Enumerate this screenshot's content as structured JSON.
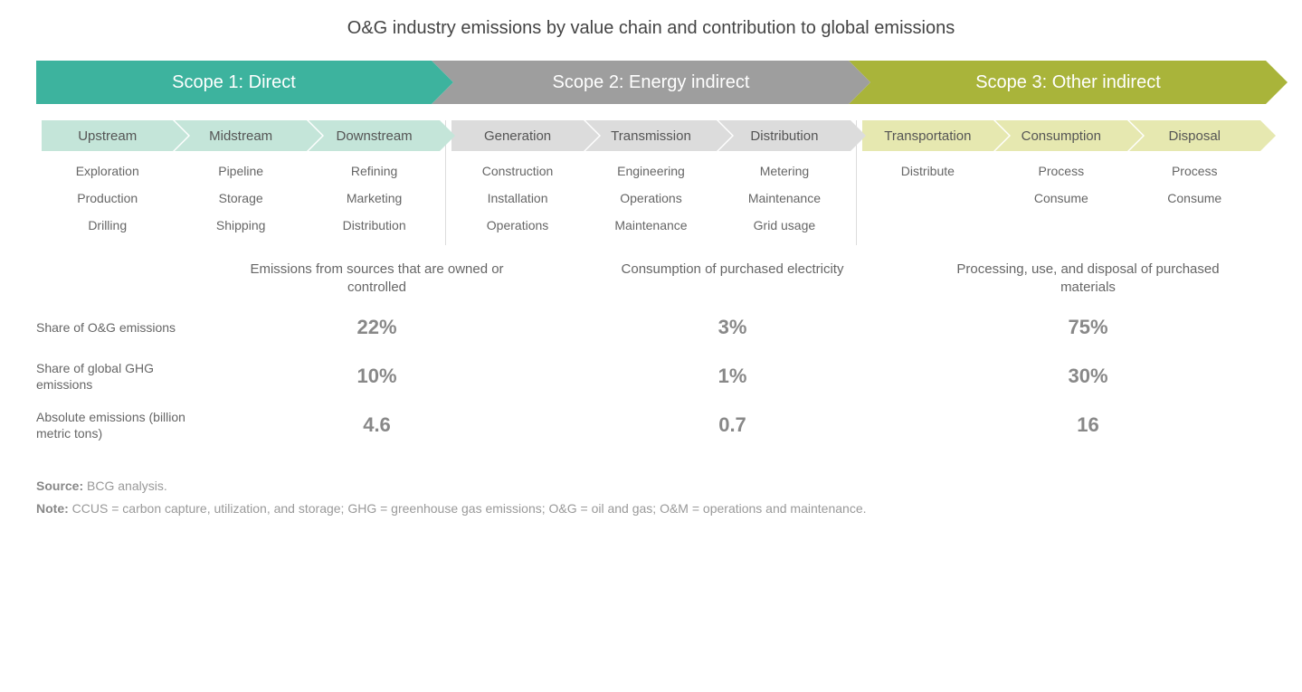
{
  "title": "O&G industry emissions by value chain and contribution to global emissions",
  "scopes": [
    {
      "label": "Scope 1: Direct",
      "color": "#3db39e",
      "sub_color": "#c4e5d9",
      "sub_class": "sa-green",
      "subs": [
        {
          "label": "Upstream",
          "items": [
            "Exploration",
            "Production",
            "Drilling"
          ]
        },
        {
          "label": "Midstream",
          "items": [
            "Pipeline",
            "Storage",
            "Shipping"
          ]
        },
        {
          "label": "Downstream",
          "items": [
            "Refining",
            "Marketing",
            "Distribution"
          ]
        }
      ],
      "description": "Emissions from sources that are owned or controlled",
      "share_og": "22%",
      "share_ghg": "10%",
      "absolute": "4.6"
    },
    {
      "label": "Scope 2: Energy indirect",
      "color": "#9e9e9e",
      "sub_color": "#dcdcdc",
      "sub_class": "sa-grey",
      "subs": [
        {
          "label": "Generation",
          "items": [
            "Construction",
            "Installation",
            "Operations"
          ]
        },
        {
          "label": "Transmission",
          "items": [
            "Engineering",
            "Operations",
            "Maintenance"
          ]
        },
        {
          "label": "Distribution",
          "items": [
            "Metering",
            "Maintenance",
            "Grid usage"
          ]
        }
      ],
      "description": "Consumption of purchased electricity",
      "share_og": "3%",
      "share_ghg": "1%",
      "absolute": "0.7"
    },
    {
      "label": "Scope 3: Other indirect",
      "color": "#a9b43a",
      "sub_color": "#e6e8b0",
      "sub_class": "sa-olive",
      "subs": [
        {
          "label": "Transportation",
          "items": [
            "Distribute"
          ]
        },
        {
          "label": "Consumption",
          "items": [
            "Process",
            "Consume"
          ]
        },
        {
          "label": "Disposal",
          "items": [
            "Process",
            "Consume"
          ]
        }
      ],
      "description": "Processing, use, and disposal of purchased materials",
      "share_og": "75%",
      "share_ghg": "30%",
      "absolute": "16"
    }
  ],
  "metric_labels": {
    "share_og": "Share of O&G emissions",
    "share_ghg": "Share of global GHG emissions",
    "absolute": "Absolute emissions (billion metric tons)"
  },
  "footer": {
    "source_label": "Source:",
    "source_text": "BCG analysis.",
    "note_label": "Note:",
    "note_text": "CCUS = carbon capture, utilization, and storage; GHG = greenhouse gas emissions; O&G = oil and gas; O&M = operations and maintenance."
  },
  "styling": {
    "background": "#ffffff",
    "text_color": "#666666",
    "metric_value_color": "#888888",
    "title_fontsize": 20,
    "scope_header_fontsize": 20,
    "sub_header_fontsize": 15,
    "item_fontsize": 14,
    "metric_fontsize": 22,
    "footer_fontsize": 14,
    "scope_header_height": 48,
    "sub_header_height": 34
  }
}
